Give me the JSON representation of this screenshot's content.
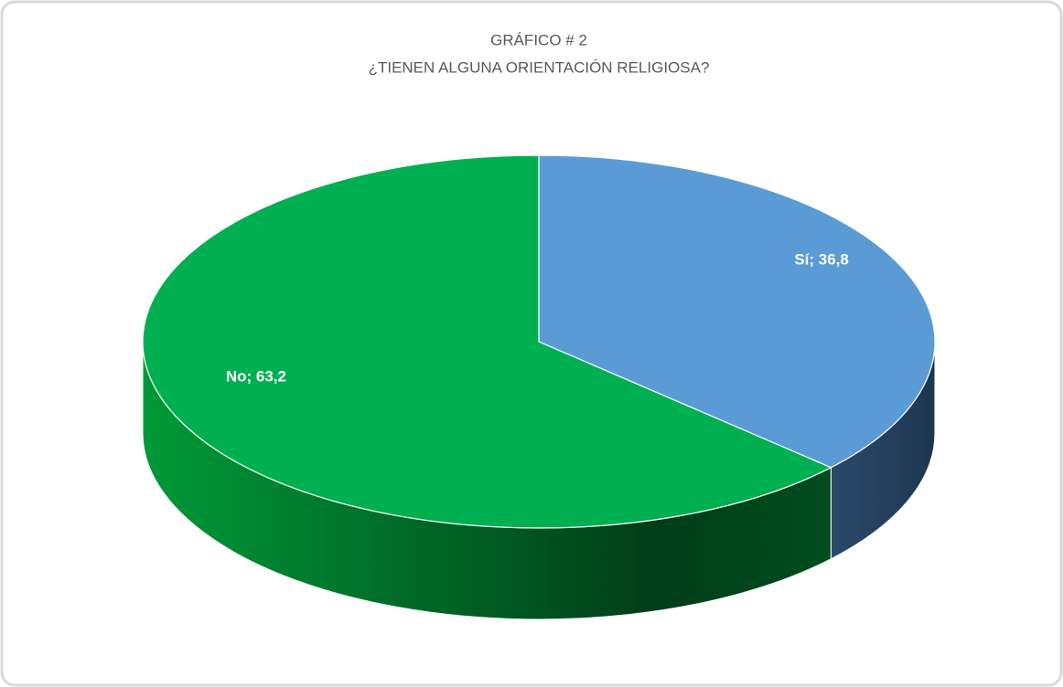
{
  "chart_data": {
    "type": "pie3d",
    "title": "GRÁFICO # 2",
    "subtitle": "¿TIENEN ALGUNA ORIENTACIÓN RELIGIOSA?",
    "values": [
      36.8,
      63.2
    ],
    "value_labels": [
      "Sí; 36,8",
      "No; 63,2"
    ],
    "colors": [
      "#5b9bd5",
      "#00b050"
    ]
  }
}
